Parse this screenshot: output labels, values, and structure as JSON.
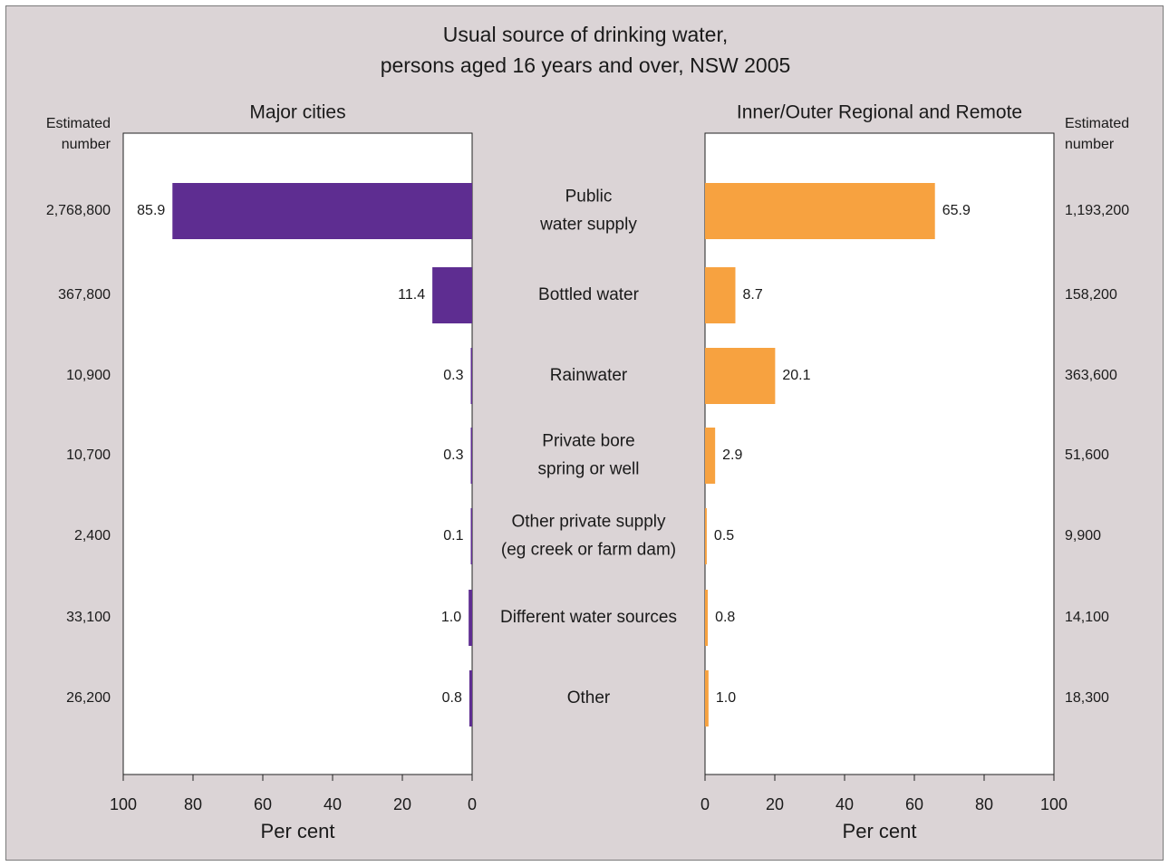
{
  "chart_data": {
    "type": "bar",
    "title_lines": [
      "Usual source of drinking water,",
      "persons aged 16 years and over, NSW 2005"
    ],
    "categories": [
      [
        "Public",
        "water supply"
      ],
      [
        "Bottled water"
      ],
      [
        "Rainwater"
      ],
      [
        "Private bore",
        "spring or well"
      ],
      [
        "Other private supply",
        "(eg creek or farm dam)"
      ],
      [
        "Different water sources"
      ],
      [
        "Other"
      ]
    ],
    "panels": [
      {
        "title": "Major cities",
        "xlabel": "Per cent",
        "xlim": [
          0,
          100
        ],
        "ticks": [
          0,
          20,
          40,
          60,
          80,
          100
        ],
        "direction": "reversed",
        "color": "#5e2d91",
        "values": [
          85.9,
          11.4,
          0.3,
          0.3,
          0.1,
          1.0,
          0.8
        ],
        "labels": [
          "85.9",
          "11.4",
          "0.3",
          "0.3",
          "0.1",
          "1.0",
          "0.8"
        ],
        "estimated_header": [
          "Estimated",
          "number"
        ],
        "estimated_numbers": [
          "2,768,800",
          "367,800",
          "10,900",
          "10,700",
          "2,400",
          "33,100",
          "26,200"
        ]
      },
      {
        "title": "Inner/Outer Regional and Remote",
        "xlabel": "Per cent",
        "xlim": [
          0,
          100
        ],
        "ticks": [
          0,
          20,
          40,
          60,
          80,
          100
        ],
        "direction": "normal",
        "color": "#f7a240",
        "values": [
          65.9,
          8.7,
          20.1,
          2.9,
          0.5,
          0.8,
          1.0
        ],
        "labels": [
          "65.9",
          "8.7",
          "20.1",
          "2.9",
          "0.5",
          "0.8",
          "1.0"
        ],
        "estimated_header": [
          "Estimated",
          "number"
        ],
        "estimated_numbers": [
          "1,193,200",
          "158,200",
          "363,600",
          "51,600",
          "9,900",
          "14,100",
          "18,300"
        ]
      }
    ]
  }
}
